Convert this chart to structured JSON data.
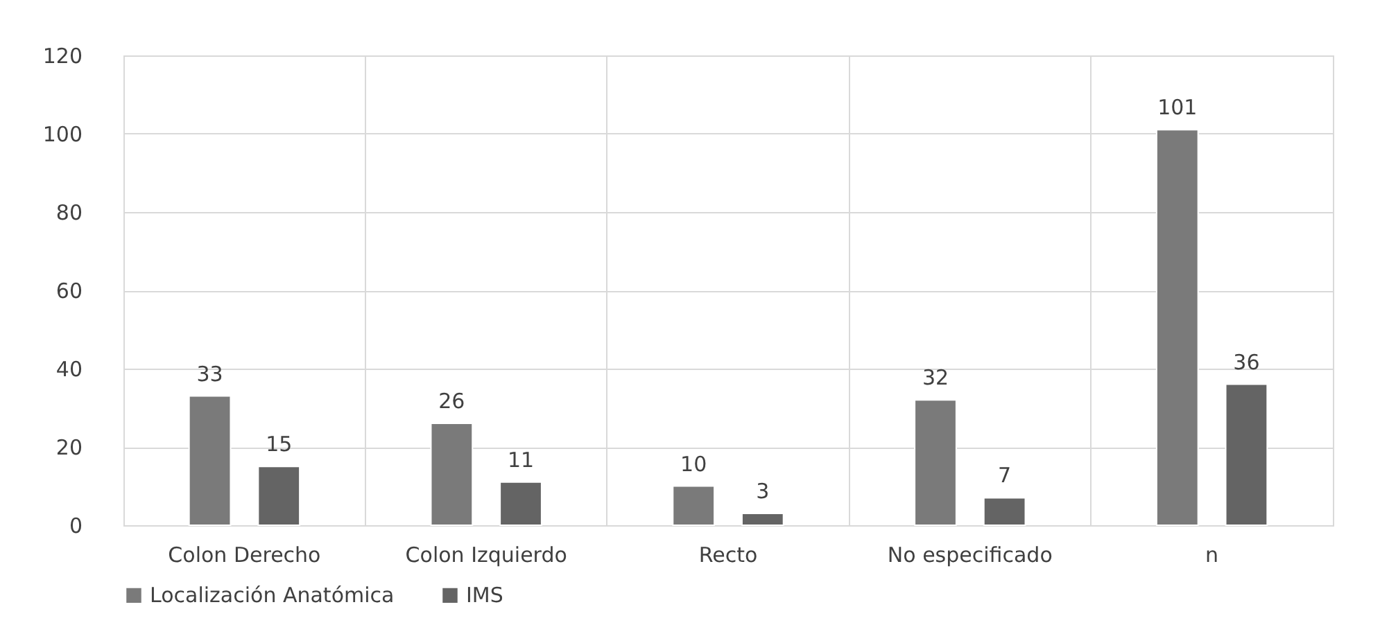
{
  "chart_data": {
    "type": "bar",
    "categories": [
      "Colon Derecho",
      "Colon Izquierdo",
      "Recto",
      "No especificado",
      "n"
    ],
    "series": [
      {
        "name": "Localización Anatómica",
        "color": "#7a7a7a",
        "values": [
          33,
          26,
          10,
          32,
          101
        ]
      },
      {
        "name": "IMS",
        "color": "#646464",
        "values": [
          15,
          11,
          3,
          7,
          36
        ]
      }
    ],
    "ylim": [
      0,
      120
    ],
    "yticks": [
      0,
      20,
      40,
      60,
      80,
      100,
      120
    ],
    "grid": true,
    "legend": "bottom",
    "data_labels": true
  }
}
